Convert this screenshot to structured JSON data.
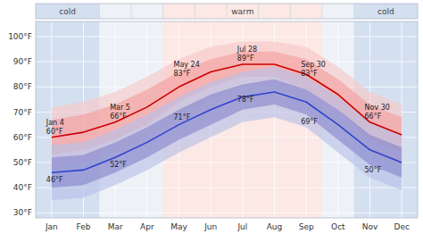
{
  "chart_data": {
    "type": "line",
    "categories": [
      "Jan",
      "Feb",
      "Mar",
      "Apr",
      "May",
      "Jun",
      "Jul",
      "Aug",
      "Sep",
      "Oct",
      "Nov",
      "Dec"
    ],
    "series": [
      {
        "color": "#cc0000",
        "values": [
          60,
          62,
          66,
          72,
          80,
          86,
          89,
          89,
          85,
          77,
          66,
          61
        ],
        "bands": [
          {
            "lower": [
              48,
              50,
              54,
              60,
              67,
              75,
              80,
              80,
              74,
              65,
              54,
              49
            ],
            "upper": [
              72,
              74,
              78,
              84,
              91,
              96,
              98,
              98,
              96,
              88,
              78,
              73
            ],
            "color": "#f7c8c8"
          },
          {
            "lower": [
              53,
              55,
              59,
              65,
              74,
              80,
              84,
              84,
              79,
              71,
              59,
              54
            ],
            "upper": [
              67,
              69,
              73,
              79,
              86,
              91,
              94,
              94,
              91,
              83,
              73,
              68
            ],
            "color": "#f5a0a0"
          }
        ]
      },
      {
        "color": "#3344cc",
        "values": [
          46,
          47,
          52,
          58,
          65,
          71,
          76,
          78,
          74,
          65,
          55,
          50
        ],
        "bands": [
          {
            "lower": [
              35,
              36,
              41,
              47,
              54,
              60,
              66,
              68,
              64,
              54,
              44,
              39
            ],
            "upper": [
              57,
              58,
              63,
              69,
              76,
              82,
              86,
              88,
              84,
              76,
              66,
              61
            ],
            "color": "#b8c0e8"
          },
          {
            "lower": [
              40,
              41,
              46,
              52,
              59,
              65,
              71,
              73,
              69,
              59,
              49,
              44
            ],
            "upper": [
              52,
              53,
              58,
              64,
              71,
              77,
              81,
              83,
              79,
              71,
              61,
              56
            ],
            "color": "#8888cc"
          }
        ]
      }
    ],
    "ylim": [
      28,
      106
    ],
    "yticks": [
      {
        "value": 30,
        "label": "30°F"
      },
      {
        "value": 40,
        "label": "40°F"
      },
      {
        "value": 50,
        "label": "50°F"
      },
      {
        "value": 60,
        "label": "60°F"
      },
      {
        "value": 70,
        "label": "70°F"
      },
      {
        "value": 80,
        "label": "80°F"
      },
      {
        "value": 90,
        "label": "90°F"
      },
      {
        "value": 100,
        "label": "100°F"
      }
    ],
    "grid": true,
    "regions": [
      {
        "label": "cold",
        "from": "Jan",
        "to": "Feb",
        "color": "#d4dff0"
      },
      {
        "label": "warm",
        "from": "May",
        "to": "Sep",
        "color": "#fce8e4"
      },
      {
        "label": "cold",
        "from": "Nov",
        "to": "Dec",
        "color": "#d4dff0"
      }
    ],
    "annotations": [
      {
        "category": "Jan",
        "text": "Jan 4",
        "values": [
          60,
          46
        ],
        "value_labels": [
          "60°F",
          "46°F"
        ]
      },
      {
        "category": "Mar",
        "text": "Mar 5",
        "values": [
          66,
          52
        ],
        "value_labels": [
          "66°F",
          "52°F"
        ]
      },
      {
        "category": "May",
        "text": "May 24",
        "values": [
          83,
          71
        ],
        "value_labels": [
          "83°F",
          "71°F"
        ]
      },
      {
        "category": "Jul",
        "text": "Jul 28",
        "values": [
          89,
          78
        ],
        "value_labels": [
          "89°F",
          "78°F"
        ]
      },
      {
        "category": "Sep",
        "text": "Sep 30",
        "values": [
          83,
          69
        ],
        "value_labels": [
          "83°F",
          "69°F"
        ]
      },
      {
        "category": "Nov",
        "text": "Nov 30",
        "values": [
          66,
          50
        ],
        "value_labels": [
          "66°F",
          "50°F"
        ]
      }
    ]
  }
}
